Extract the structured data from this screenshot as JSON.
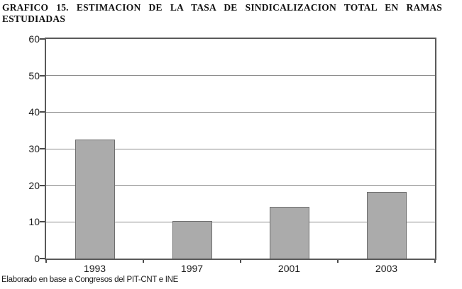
{
  "title_line1": "GRAFICO 15. ESTIMACION DE LA TASA DE SINDICALIZACION TOTAL EN RAMAS",
  "title_line2": "ESTUDIADAS",
  "source_note": "Elaborado en base a Congresos del PIT-CNT e INE",
  "chart_data": {
    "type": "bar",
    "title": "GRAFICO 15. ESTIMACION DE LA TASA DE SINDICALIZACION TOTAL EN RAMAS ESTUDIADAS",
    "categories": [
      "1993",
      "1997",
      "2001",
      "2003"
    ],
    "values": [
      32.5,
      10.2,
      14.1,
      18.2
    ],
    "xlabel": "",
    "ylabel": "",
    "ylim": [
      0,
      60
    ],
    "yticks": [
      0,
      10,
      20,
      30,
      40,
      50,
      60
    ],
    "grid": true,
    "legend": false,
    "annotation": "Elaborado en base a Congresos del PIT-CNT e INE",
    "bar_color": "#ababab",
    "bar_border_color": "#6e6e6e",
    "plot_border_color": "#5a5a5a",
    "gridline_color": "#8c8c8c",
    "text_color": "#1c1c1c"
  }
}
